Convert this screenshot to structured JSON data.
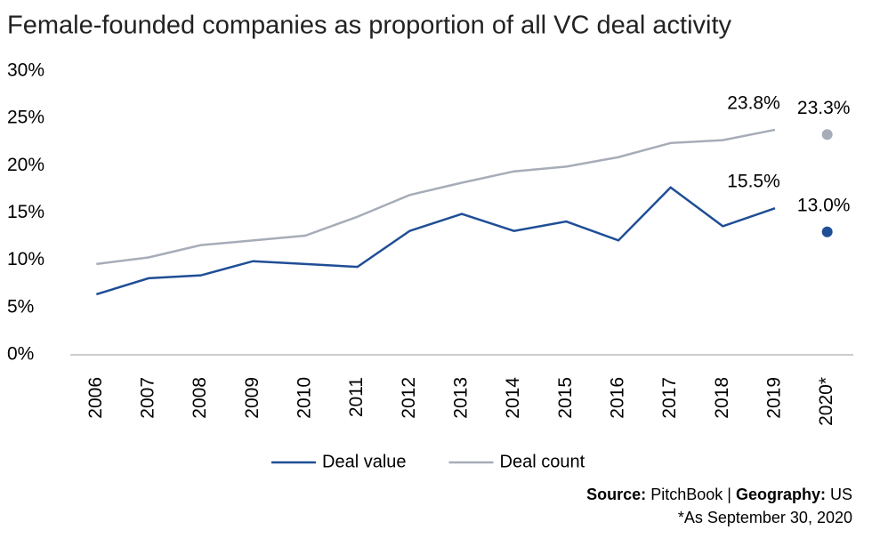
{
  "chart_data": {
    "type": "line",
    "title": "Female-founded companies as proportion of all VC deal activity",
    "categories": [
      "2006",
      "2007",
      "2008",
      "2009",
      "2010",
      "2011",
      "2012",
      "2013",
      "2014",
      "2015",
      "2016",
      "2017",
      "2018",
      "2019",
      "2020*"
    ],
    "series": [
      {
        "name": "Deal value",
        "color": "#1f4e96",
        "values": [
          6.4,
          8.1,
          8.4,
          9.9,
          9.6,
          9.3,
          13.1,
          14.9,
          13.1,
          14.1,
          12.1,
          17.7,
          13.6,
          15.5,
          13.0
        ],
        "value_labels": [
          null,
          null,
          null,
          null,
          null,
          null,
          null,
          null,
          null,
          null,
          null,
          null,
          null,
          "15.5%",
          "13.0%"
        ]
      },
      {
        "name": "Deal count",
        "color": "#a6adb8",
        "values": [
          9.6,
          10.3,
          11.6,
          12.1,
          12.6,
          14.6,
          16.9,
          18.2,
          19.4,
          19.9,
          20.9,
          22.4,
          22.7,
          23.8,
          23.3
        ],
        "value_labels": [
          null,
          null,
          null,
          null,
          null,
          null,
          null,
          null,
          null,
          null,
          null,
          null,
          null,
          "23.8%",
          "23.3%"
        ]
      }
    ],
    "last_point_separate": true,
    "ylim": [
      0,
      30
    ],
    "yticks": [
      {
        "value": 0,
        "label": "0%"
      },
      {
        "value": 5,
        "label": "5%"
      },
      {
        "value": 10,
        "label": "10%"
      },
      {
        "value": 15,
        "label": "15%"
      },
      {
        "value": 20,
        "label": "20%"
      },
      {
        "value": 25,
        "label": "25%"
      },
      {
        "value": 30,
        "label": "30%"
      }
    ],
    "legend": "bottom",
    "source": {
      "label": "Source:",
      "text": "PitchBook |",
      "geo_label": "Geography:",
      "geo": "US"
    },
    "footnote": "*As September 30, 2020"
  }
}
